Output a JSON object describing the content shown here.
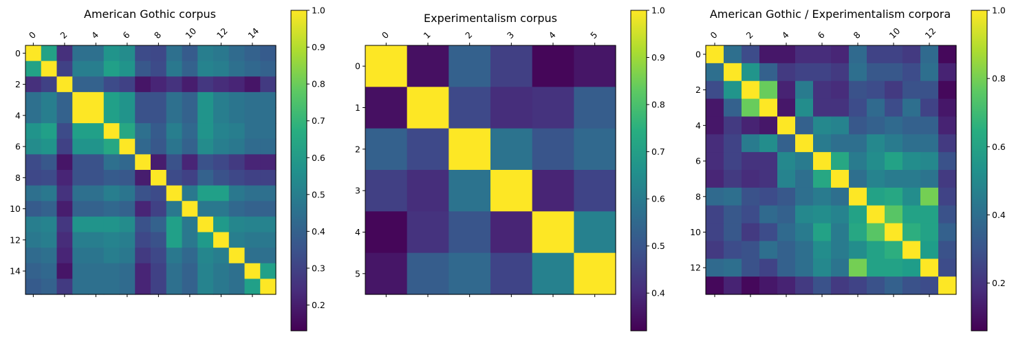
{
  "chart_data": [
    {
      "type": "heatmap",
      "title": "American Gothic corpus",
      "size": 16,
      "x_tick_labels": [
        "0",
        "2",
        "4",
        "6",
        "8",
        "10",
        "12",
        "14"
      ],
      "y_tick_labels": [
        "0",
        "2",
        "4",
        "6",
        "8",
        "10",
        "12",
        "14"
      ],
      "colorbar": {
        "ticks": [
          "0.2",
          "0.3",
          "0.4",
          "0.5",
          "0.6",
          "0.7",
          "0.8",
          "0.9",
          "1.0"
        ],
        "range": [
          0.13,
          1.0
        ]
      },
      "colormap": "viridis",
      "matrix": [
        [
          1.0,
          0.63,
          0.25,
          0.45,
          0.45,
          0.58,
          0.55,
          0.33,
          0.32,
          0.45,
          0.38,
          0.5,
          0.48,
          0.43,
          0.4,
          0.38
        ],
        [
          0.63,
          1.0,
          0.3,
          0.5,
          0.5,
          0.62,
          0.58,
          0.37,
          0.33,
          0.48,
          0.4,
          0.52,
          0.5,
          0.45,
          0.42,
          0.4
        ],
        [
          0.25,
          0.3,
          1.0,
          0.4,
          0.4,
          0.33,
          0.3,
          0.18,
          0.22,
          0.26,
          0.2,
          0.27,
          0.24,
          0.22,
          0.18,
          0.28
        ],
        [
          0.45,
          0.5,
          0.4,
          1.0,
          1.0,
          0.62,
          0.58,
          0.35,
          0.35,
          0.45,
          0.4,
          0.58,
          0.5,
          0.47,
          0.45,
          0.45
        ],
        [
          0.45,
          0.5,
          0.4,
          1.0,
          1.0,
          0.62,
          0.58,
          0.35,
          0.35,
          0.45,
          0.4,
          0.58,
          0.5,
          0.47,
          0.45,
          0.45
        ],
        [
          0.58,
          0.62,
          0.33,
          0.62,
          0.62,
          1.0,
          0.65,
          0.45,
          0.38,
          0.5,
          0.42,
          0.58,
          0.52,
          0.5,
          0.45,
          0.45
        ],
        [
          0.55,
          0.58,
          0.3,
          0.58,
          0.58,
          0.65,
          1.0,
          0.42,
          0.37,
          0.47,
          0.4,
          0.55,
          0.5,
          0.48,
          0.43,
          0.43
        ],
        [
          0.33,
          0.37,
          0.18,
          0.35,
          0.35,
          0.45,
          0.42,
          1.0,
          0.2,
          0.35,
          0.22,
          0.35,
          0.32,
          0.28,
          0.22,
          0.22
        ],
        [
          0.32,
          0.33,
          0.22,
          0.35,
          0.35,
          0.38,
          0.37,
          0.2,
          1.0,
          0.33,
          0.3,
          0.4,
          0.35,
          0.32,
          0.3,
          0.3
        ],
        [
          0.45,
          0.48,
          0.26,
          0.45,
          0.45,
          0.5,
          0.47,
          0.35,
          0.33,
          1.0,
          0.48,
          0.62,
          0.62,
          0.48,
          0.45,
          0.45
        ],
        [
          0.38,
          0.4,
          0.2,
          0.4,
          0.4,
          0.42,
          0.4,
          0.22,
          0.3,
          0.48,
          1.0,
          0.48,
          0.48,
          0.42,
          0.4,
          0.4
        ],
        [
          0.5,
          0.52,
          0.27,
          0.58,
          0.58,
          0.58,
          0.55,
          0.35,
          0.4,
          0.62,
          0.48,
          1.0,
          0.6,
          0.53,
          0.52,
          0.52
        ],
        [
          0.48,
          0.5,
          0.24,
          0.5,
          0.5,
          0.52,
          0.5,
          0.32,
          0.35,
          0.62,
          0.48,
          0.6,
          1.0,
          0.5,
          0.48,
          0.48
        ],
        [
          0.43,
          0.45,
          0.22,
          0.47,
          0.47,
          0.5,
          0.48,
          0.28,
          0.32,
          0.48,
          0.42,
          0.53,
          0.5,
          1.0,
          0.45,
          0.45
        ],
        [
          0.4,
          0.42,
          0.18,
          0.45,
          0.45,
          0.45,
          0.43,
          0.22,
          0.3,
          0.45,
          0.4,
          0.52,
          0.48,
          0.45,
          1.0,
          0.62
        ],
        [
          0.38,
          0.4,
          0.28,
          0.45,
          0.45,
          0.45,
          0.43,
          0.22,
          0.3,
          0.45,
          0.4,
          0.52,
          0.48,
          0.45,
          0.62,
          1.0
        ]
      ]
    },
    {
      "type": "heatmap",
      "title": "Experimentalism corpus",
      "size": 6,
      "x_tick_labels": [
        "0",
        "1",
        "2",
        "3",
        "4",
        "5"
      ],
      "y_tick_labels": [
        "0",
        "1",
        "2",
        "3",
        "4",
        "5"
      ],
      "colorbar": {
        "ticks": [
          "0.4",
          "0.5",
          "0.6",
          "0.7",
          "0.8",
          "0.9",
          "1.0"
        ],
        "range": [
          0.32,
          1.0
        ]
      },
      "colormap": "viridis",
      "matrix": [
        [
          1.0,
          0.35,
          0.53,
          0.45,
          0.33,
          0.36
        ],
        [
          0.35,
          1.0,
          0.47,
          0.41,
          0.42,
          0.52
        ],
        [
          0.53,
          0.47,
          1.0,
          0.58,
          0.5,
          0.55
        ],
        [
          0.45,
          0.41,
          0.58,
          1.0,
          0.39,
          0.46
        ],
        [
          0.33,
          0.42,
          0.5,
          0.39,
          1.0,
          0.62
        ],
        [
          0.36,
          0.52,
          0.55,
          0.46,
          0.62,
          1.0
        ]
      ]
    },
    {
      "type": "heatmap",
      "title": "American Gothic / Experimentalism corpora",
      "size": 14,
      "x_tick_labels": [
        "0",
        "2",
        "4",
        "6",
        "8",
        "10",
        "12"
      ],
      "y_tick_labels": [
        "0",
        "2",
        "4",
        "6",
        "8",
        "10",
        "12"
      ],
      "colorbar": {
        "ticks": [
          "0.2",
          "0.4",
          "0.6",
          "0.8",
          "1.0"
        ],
        "range": [
          0.06,
          1.0
        ]
      },
      "colormap": "viridis",
      "matrix": [
        [
          1.0,
          0.4,
          0.28,
          0.12,
          0.12,
          0.18,
          0.18,
          0.16,
          0.38,
          0.25,
          0.25,
          0.22,
          0.38,
          0.08
        ],
        [
          0.4,
          1.0,
          0.55,
          0.35,
          0.22,
          0.25,
          0.25,
          0.22,
          0.4,
          0.32,
          0.32,
          0.28,
          0.4,
          0.15
        ],
        [
          0.28,
          0.55,
          1.0,
          0.78,
          0.15,
          0.45,
          0.2,
          0.18,
          0.3,
          0.28,
          0.22,
          0.3,
          0.3,
          0.08
        ],
        [
          0.12,
          0.35,
          0.78,
          1.0,
          0.12,
          0.52,
          0.2,
          0.2,
          0.28,
          0.38,
          0.28,
          0.4,
          0.25,
          0.12
        ],
        [
          0.12,
          0.22,
          0.15,
          0.12,
          1.0,
          0.35,
          0.5,
          0.48,
          0.32,
          0.35,
          0.38,
          0.35,
          0.35,
          0.15
        ],
        [
          0.18,
          0.25,
          0.45,
          0.52,
          0.35,
          1.0,
          0.45,
          0.4,
          0.4,
          0.5,
          0.45,
          0.4,
          0.4,
          0.22
        ],
        [
          0.18,
          0.25,
          0.2,
          0.2,
          0.5,
          0.45,
          1.0,
          0.62,
          0.45,
          0.52,
          0.6,
          0.52,
          0.5,
          0.3
        ],
        [
          0.16,
          0.22,
          0.18,
          0.2,
          0.48,
          0.4,
          0.62,
          1.0,
          0.4,
          0.48,
          0.45,
          0.45,
          0.42,
          0.22
        ],
        [
          0.38,
          0.4,
          0.3,
          0.28,
          0.32,
          0.4,
          0.45,
          0.4,
          1.0,
          0.6,
          0.62,
          0.52,
          0.8,
          0.25
        ],
        [
          0.25,
          0.32,
          0.28,
          0.38,
          0.35,
          0.5,
          0.52,
          0.48,
          0.6,
          1.0,
          0.75,
          0.6,
          0.6,
          0.3
        ],
        [
          0.25,
          0.32,
          0.22,
          0.28,
          0.38,
          0.45,
          0.6,
          0.45,
          0.62,
          0.75,
          1.0,
          0.65,
          0.6,
          0.35
        ],
        [
          0.22,
          0.28,
          0.3,
          0.4,
          0.35,
          0.4,
          0.52,
          0.45,
          0.52,
          0.6,
          0.65,
          1.0,
          0.58,
          0.3
        ],
        [
          0.38,
          0.4,
          0.3,
          0.25,
          0.35,
          0.4,
          0.5,
          0.42,
          0.8,
          0.6,
          0.6,
          0.58,
          1.0,
          0.28
        ],
        [
          0.08,
          0.15,
          0.08,
          0.12,
          0.15,
          0.22,
          0.3,
          0.22,
          0.25,
          0.3,
          0.35,
          0.3,
          0.28,
          1.0
        ]
      ]
    }
  ]
}
